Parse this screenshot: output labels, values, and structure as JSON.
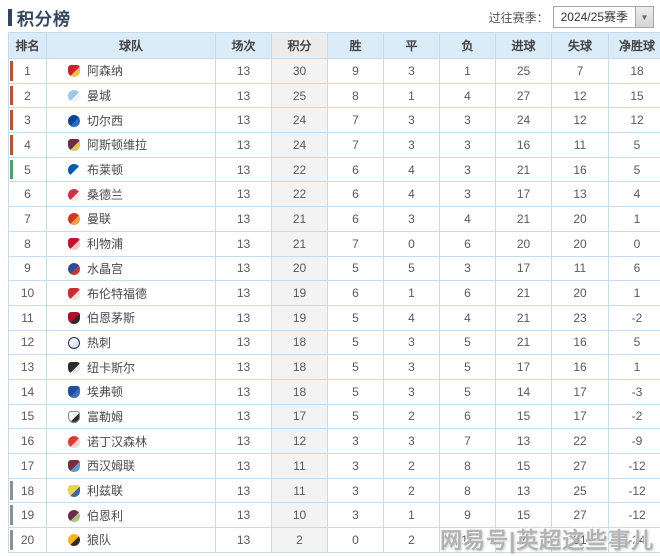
{
  "header": {
    "title": "积分榜",
    "season_label": "过往赛季：",
    "season_value": "2024/25赛季",
    "dropdown_arrow": "▼"
  },
  "watermark": {
    "text": "网易号|英超这些事儿"
  },
  "colors": {
    "accent_top4": "#b4542e",
    "accent_rank5": "#4ca26a",
    "accent_relegation": "#909090",
    "header_bg": "#d9ecf7",
    "points_col_bg": "#f3f3f3",
    "border": "#c6dcec"
  },
  "table": {
    "columns": [
      "排名",
      "球队",
      "场次",
      "积分",
      "胜",
      "平",
      "负",
      "进球",
      "失球",
      "净胜球"
    ],
    "rows": [
      {
        "rank": 1,
        "team": "阿森纳",
        "icon": "arsenal-badge-icon",
        "shape": "shield",
        "badge": [
          "#d01e2f",
          "#f0c14b"
        ],
        "marker": "#b4542e",
        "p": 13,
        "pts": 30,
        "w": 9,
        "d": 3,
        "l": 1,
        "gf": 25,
        "ga": 7,
        "gd": 18
      },
      {
        "rank": 2,
        "team": "曼城",
        "icon": "man-city-badge-icon",
        "shape": "circle",
        "badge": [
          "#9fc8e8",
          "#eef6fb"
        ],
        "marker": "#b4542e",
        "p": 13,
        "pts": 25,
        "w": 8,
        "d": 1,
        "l": 4,
        "gf": 27,
        "ga": 12,
        "gd": 15
      },
      {
        "rank": 3,
        "team": "切尔西",
        "icon": "chelsea-badge-icon",
        "shape": "circle",
        "badge": [
          "#0a4595",
          "#2a6ac2"
        ],
        "marker": "#b4542e",
        "p": 13,
        "pts": 24,
        "w": 7,
        "d": 3,
        "l": 3,
        "gf": 24,
        "ga": 12,
        "gd": 12
      },
      {
        "rank": 4,
        "team": "阿斯顿维拉",
        "icon": "aston-villa-badge-icon",
        "shape": "shield",
        "badge": [
          "#6f2b45",
          "#d8c94f"
        ],
        "marker": "#b4542e",
        "p": 13,
        "pts": 24,
        "w": 7,
        "d": 3,
        "l": 3,
        "gf": 16,
        "ga": 11,
        "gd": 5
      },
      {
        "rank": 5,
        "team": "布莱顿",
        "icon": "brighton-badge-icon",
        "shape": "circle",
        "badge": [
          "#0057b8",
          "#ffffff"
        ],
        "marker": "#4ca26a",
        "p": 13,
        "pts": 22,
        "w": 6,
        "d": 4,
        "l": 3,
        "gf": 21,
        "ga": 16,
        "gd": 5
      },
      {
        "rank": 6,
        "team": "桑德兰",
        "icon": "sunderland-badge-icon",
        "shape": "circle",
        "badge": [
          "#d32f3f",
          "#f3e8e8"
        ],
        "marker": null,
        "p": 13,
        "pts": 22,
        "w": 6,
        "d": 4,
        "l": 3,
        "gf": 17,
        "ga": 13,
        "gd": 4
      },
      {
        "rank": 7,
        "team": "曼联",
        "icon": "man-united-badge-icon",
        "shape": "circle",
        "badge": [
          "#d6351f",
          "#e8a33d"
        ],
        "marker": null,
        "p": 13,
        "pts": 21,
        "w": 6,
        "d": 3,
        "l": 4,
        "gf": 21,
        "ga": 20,
        "gd": 1
      },
      {
        "rank": 8,
        "team": "利物浦",
        "icon": "liverpool-badge-icon",
        "shape": "shield",
        "badge": [
          "#c8102e",
          "#e7c9ce"
        ],
        "marker": null,
        "p": 13,
        "pts": 21,
        "w": 7,
        "d": 0,
        "l": 6,
        "gf": 20,
        "ga": 20,
        "gd": 0
      },
      {
        "rank": 9,
        "team": "水晶宫",
        "icon": "crystal-palace-badge-icon",
        "shape": "circle",
        "badge": [
          "#2b4d9b",
          "#c0392b"
        ],
        "marker": null,
        "p": 13,
        "pts": 20,
        "w": 5,
        "d": 5,
        "l": 3,
        "gf": 17,
        "ga": 11,
        "gd": 6
      },
      {
        "rank": 10,
        "team": "布伦特福德",
        "icon": "brentford-badge-icon",
        "shape": "shield",
        "badge": [
          "#d22730",
          "#f4dede"
        ],
        "marker": null,
        "p": 13,
        "pts": 19,
        "w": 6,
        "d": 1,
        "l": 6,
        "gf": 21,
        "ga": 20,
        "gd": 1
      },
      {
        "rank": 11,
        "team": "伯恩茅斯",
        "icon": "bournemouth-badge-icon",
        "shape": "shield",
        "badge": [
          "#b50f27",
          "#2b2b2b"
        ],
        "marker": null,
        "p": 13,
        "pts": 19,
        "w": 5,
        "d": 4,
        "l": 4,
        "gf": 21,
        "ga": 23,
        "gd": -2
      },
      {
        "rank": 12,
        "team": "热刺",
        "icon": "tottenham-badge-icon",
        "shape": "circle",
        "badge": [
          "#f4f6fa",
          "#dfe3ec"
        ],
        "ring": "#1b2d5b",
        "marker": null,
        "p": 13,
        "pts": 18,
        "w": 5,
        "d": 3,
        "l": 5,
        "gf": 21,
        "ga": 16,
        "gd": 5
      },
      {
        "rank": 13,
        "team": "纽卡斯尔",
        "icon": "newcastle-badge-icon",
        "shape": "shield",
        "badge": [
          "#2b2b2b",
          "#e8e8e8"
        ],
        "marker": null,
        "p": 13,
        "pts": 18,
        "w": 5,
        "d": 3,
        "l": 5,
        "gf": 17,
        "ga": 16,
        "gd": 1
      },
      {
        "rank": 14,
        "team": "埃弗顿",
        "icon": "everton-badge-icon",
        "shape": "shield",
        "badge": [
          "#1d4f9e",
          "#3c6cbb"
        ],
        "marker": null,
        "p": 13,
        "pts": 18,
        "w": 5,
        "d": 3,
        "l": 5,
        "gf": 14,
        "ga": 17,
        "gd": -3
      },
      {
        "rank": 15,
        "team": "富勒姆",
        "icon": "fulham-badge-icon",
        "shape": "shield",
        "badge": [
          "#f5f5f5",
          "#2b2b2b"
        ],
        "ring": "#8a8a8a",
        "marker": null,
        "p": 13,
        "pts": 17,
        "w": 5,
        "d": 2,
        "l": 6,
        "gf": 15,
        "ga": 17,
        "gd": -2
      },
      {
        "rank": 16,
        "team": "诺丁汉森林",
        "icon": "nottingham-forest-badge-icon",
        "shape": "circle",
        "badge": [
          "#e03a2f",
          "#f6d4d2"
        ],
        "marker": null,
        "p": 13,
        "pts": 12,
        "w": 3,
        "d": 3,
        "l": 7,
        "gf": 13,
        "ga": 22,
        "gd": -9
      },
      {
        "rank": 17,
        "team": "西汉姆联",
        "icon": "west-ham-badge-icon",
        "shape": "shield",
        "badge": [
          "#7d2c3b",
          "#5d9ad1"
        ],
        "marker": null,
        "p": 13,
        "pts": 11,
        "w": 3,
        "d": 2,
        "l": 8,
        "gf": 15,
        "ga": 27,
        "gd": -12
      },
      {
        "rank": 18,
        "team": "利兹联",
        "icon": "leeds-badge-icon",
        "shape": "shield",
        "badge": [
          "#e9d44f",
          "#3a66b0"
        ],
        "marker": "#909090",
        "p": 13,
        "pts": 11,
        "w": 3,
        "d": 2,
        "l": 8,
        "gf": 13,
        "ga": 25,
        "gd": -12
      },
      {
        "rank": 19,
        "team": "伯恩利",
        "icon": "burnley-badge-icon",
        "shape": "circle",
        "badge": [
          "#6d2a4e",
          "#a8c37e"
        ],
        "marker": "#909090",
        "p": 13,
        "pts": 10,
        "w": 3,
        "d": 1,
        "l": 9,
        "gf": 15,
        "ga": 27,
        "gd": -12
      },
      {
        "rank": 20,
        "team": "狼队",
        "icon": "wolves-badge-icon",
        "shape": "circle",
        "badge": [
          "#f9b514",
          "#2b2b2b"
        ],
        "marker": "#909090",
        "p": 13,
        "pts": 2,
        "w": 0,
        "d": 2,
        "l": 11,
        "gf": 7,
        "ga": 31,
        "gd": -24
      }
    ]
  }
}
